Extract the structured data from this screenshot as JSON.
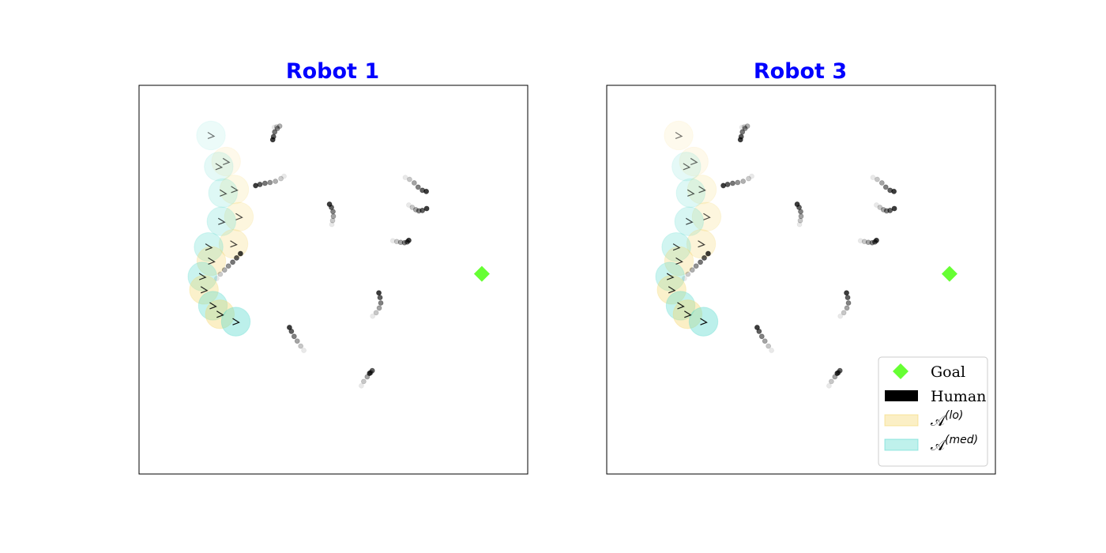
{
  "colors": {
    "title": "#0000ff",
    "goal": "#66ff33",
    "human": "#000000",
    "a_lo": "#f5d76e",
    "a_med": "#5fdcd0",
    "axes_frame": "#000000"
  },
  "chart_data": [
    {
      "type": "scatter",
      "title": "Robot 1",
      "xlim": [
        0,
        100
      ],
      "ylim": [
        0,
        100
      ],
      "grid": false,
      "ticks": false,
      "legend": null,
      "goal": {
        "x": 88.2,
        "y": 51.5
      },
      "humans": [
        [
          [
            34.8,
            89.2
          ],
          [
            35.4,
            89.3
          ],
          [
            36.2,
            89.5
          ],
          [
            35.6,
            88.9
          ],
          [
            34.9,
            88.0
          ],
          [
            34.6,
            86.8
          ],
          [
            34.4,
            86.0
          ]
        ],
        [
          [
            37.3,
            76.6
          ],
          [
            36.5,
            76.0
          ],
          [
            35.1,
            75.3
          ],
          [
            33.7,
            75.0
          ],
          [
            32.4,
            74.8
          ],
          [
            31.1,
            74.5
          ],
          [
            30.0,
            74.2
          ]
        ],
        [
          [
            68.5,
            76.3
          ],
          [
            69.6,
            75.8
          ],
          [
            70.8,
            74.9
          ],
          [
            71.8,
            73.8
          ],
          [
            72.9,
            73.0
          ],
          [
            73.9,
            72.7
          ]
        ],
        [
          [
            69.4,
            69.2
          ],
          [
            70.3,
            68.6
          ],
          [
            71.2,
            68.0
          ],
          [
            72.0,
            67.7
          ],
          [
            72.9,
            67.8
          ],
          [
            74.0,
            68.3
          ]
        ],
        [
          [
            49.6,
            64.2
          ],
          [
            49.8,
            65.2
          ],
          [
            50.0,
            66.3
          ],
          [
            49.9,
            67.5
          ],
          [
            49.5,
            68.6
          ],
          [
            49.0,
            69.4
          ]
        ],
        [
          [
            65.3,
            60.0
          ],
          [
            66.3,
            59.8
          ],
          [
            67.3,
            59.6
          ],
          [
            68.3,
            59.5
          ],
          [
            69.0,
            59.7
          ],
          [
            69.4,
            60.1
          ]
        ],
        [
          [
            20.0,
            50.3
          ],
          [
            20.9,
            51.4
          ],
          [
            22.0,
            52.5
          ],
          [
            23.0,
            53.5
          ],
          [
            24.1,
            54.5
          ],
          [
            25.1,
            55.6
          ],
          [
            26.1,
            56.7
          ]
        ],
        [
          [
            60.1,
            40.6
          ],
          [
            61.0,
            41.5
          ],
          [
            61.8,
            42.7
          ],
          [
            62.2,
            44.0
          ],
          [
            62.0,
            45.4
          ],
          [
            61.7,
            46.6
          ]
        ],
        [
          [
            42.4,
            31.8
          ],
          [
            41.6,
            32.9
          ],
          [
            40.7,
            34.2
          ],
          [
            39.9,
            35.4
          ],
          [
            39.2,
            36.7
          ],
          [
            38.7,
            37.7
          ]
        ],
        [
          [
            57.2,
            22.7
          ],
          [
            57.8,
            23.8
          ],
          [
            58.7,
            25.0
          ],
          [
            59.6,
            26.1
          ],
          [
            60.0,
            26.6
          ],
          [
            59.3,
            25.9
          ]
        ]
      ],
      "robot_path": [
        {
          "x": 18.5,
          "y": 87.1,
          "set": "med"
        },
        {
          "x": 22.4,
          "y": 80.4,
          "set": "lo"
        },
        {
          "x": 20.5,
          "y": 79.1,
          "set": "med"
        },
        {
          "x": 24.5,
          "y": 73.2,
          "set": "lo"
        },
        {
          "x": 21.6,
          "y": 72.3,
          "set": "med"
        },
        {
          "x": 25.7,
          "y": 66.2,
          "set": "lo"
        },
        {
          "x": 21.2,
          "y": 65.0,
          "set": "med"
        },
        {
          "x": 24.3,
          "y": 59.2,
          "set": "lo"
        },
        {
          "x": 17.9,
          "y": 58.4,
          "set": "med"
        },
        {
          "x": 18.6,
          "y": 54.8,
          "set": "lo"
        },
        {
          "x": 16.3,
          "y": 50.8,
          "set": "med"
        },
        {
          "x": 16.7,
          "y": 47.4,
          "set": "lo"
        },
        {
          "x": 19.0,
          "y": 43.3,
          "set": "med"
        },
        {
          "x": 20.8,
          "y": 41.1,
          "set": "lo"
        },
        {
          "x": 24.9,
          "y": 39.2,
          "set": "med"
        }
      ]
    },
    {
      "type": "scatter",
      "title": "Robot 3",
      "xlim": [
        0,
        100
      ],
      "ylim": [
        0,
        100
      ],
      "grid": false,
      "ticks": false,
      "legend": "lower-right",
      "legend_entries": [
        {
          "key": "goal",
          "label": "Goal"
        },
        {
          "key": "human",
          "label": "Human"
        },
        {
          "key": "a_lo",
          "label": "𝒜",
          "sup": "(lo)"
        },
        {
          "key": "a_med",
          "label": "𝒜",
          "sup": "(med)"
        }
      ],
      "goal": {
        "x": 88.2,
        "y": 51.5
      },
      "humans": [
        [
          [
            34.8,
            89.2
          ],
          [
            35.4,
            89.3
          ],
          [
            36.2,
            89.5
          ],
          [
            35.6,
            88.9
          ],
          [
            34.9,
            88.0
          ],
          [
            34.6,
            86.8
          ],
          [
            34.4,
            86.0
          ]
        ],
        [
          [
            37.3,
            76.6
          ],
          [
            36.5,
            76.0
          ],
          [
            35.1,
            75.3
          ],
          [
            33.7,
            75.0
          ],
          [
            32.4,
            74.8
          ],
          [
            31.1,
            74.5
          ],
          [
            30.0,
            74.2
          ]
        ],
        [
          [
            68.5,
            76.3
          ],
          [
            69.6,
            75.8
          ],
          [
            70.8,
            74.9
          ],
          [
            71.8,
            73.8
          ],
          [
            72.9,
            73.0
          ],
          [
            73.9,
            72.7
          ]
        ],
        [
          [
            69.4,
            69.2
          ],
          [
            70.3,
            68.6
          ],
          [
            71.2,
            68.0
          ],
          [
            72.0,
            67.7
          ],
          [
            72.9,
            67.8
          ],
          [
            74.0,
            68.3
          ]
        ],
        [
          [
            49.6,
            64.2
          ],
          [
            49.8,
            65.2
          ],
          [
            50.0,
            66.3
          ],
          [
            49.9,
            67.5
          ],
          [
            49.5,
            68.6
          ],
          [
            49.0,
            69.4
          ]
        ],
        [
          [
            65.3,
            60.0
          ],
          [
            66.3,
            59.8
          ],
          [
            67.3,
            59.6
          ],
          [
            68.3,
            59.5
          ],
          [
            69.0,
            59.7
          ],
          [
            69.4,
            60.1
          ]
        ],
        [
          [
            20.0,
            50.3
          ],
          [
            20.9,
            51.4
          ],
          [
            22.0,
            52.5
          ],
          [
            23.0,
            53.5
          ],
          [
            24.1,
            54.5
          ],
          [
            25.1,
            55.6
          ],
          [
            26.1,
            56.7
          ]
        ],
        [
          [
            60.1,
            40.6
          ],
          [
            61.0,
            41.5
          ],
          [
            61.8,
            42.7
          ],
          [
            62.2,
            44.0
          ],
          [
            62.0,
            45.4
          ],
          [
            61.7,
            46.6
          ]
        ],
        [
          [
            42.4,
            31.8
          ],
          [
            41.6,
            32.9
          ],
          [
            40.7,
            34.2
          ],
          [
            39.9,
            35.4
          ],
          [
            39.2,
            36.7
          ],
          [
            38.7,
            37.7
          ]
        ],
        [
          [
            57.2,
            22.7
          ],
          [
            57.8,
            23.8
          ],
          [
            58.7,
            25.0
          ],
          [
            59.6,
            26.1
          ],
          [
            60.0,
            26.6
          ],
          [
            59.3,
            25.9
          ]
        ]
      ],
      "robot_path": [
        {
          "x": 18.5,
          "y": 87.1,
          "set": "lo"
        },
        {
          "x": 22.4,
          "y": 80.4,
          "set": "lo"
        },
        {
          "x": 20.5,
          "y": 79.1,
          "set": "med"
        },
        {
          "x": 24.5,
          "y": 73.2,
          "set": "lo"
        },
        {
          "x": 21.6,
          "y": 72.3,
          "set": "med"
        },
        {
          "x": 25.7,
          "y": 66.2,
          "set": "lo"
        },
        {
          "x": 21.2,
          "y": 65.0,
          "set": "med"
        },
        {
          "x": 24.3,
          "y": 59.2,
          "set": "lo"
        },
        {
          "x": 17.9,
          "y": 58.4,
          "set": "med"
        },
        {
          "x": 18.6,
          "y": 54.8,
          "set": "lo"
        },
        {
          "x": 16.3,
          "y": 50.8,
          "set": "med"
        },
        {
          "x": 16.7,
          "y": 47.4,
          "set": "lo"
        },
        {
          "x": 19.0,
          "y": 43.3,
          "set": "med"
        },
        {
          "x": 20.8,
          "y": 41.1,
          "set": "lo"
        },
        {
          "x": 24.9,
          "y": 39.2,
          "set": "med"
        }
      ]
    }
  ]
}
